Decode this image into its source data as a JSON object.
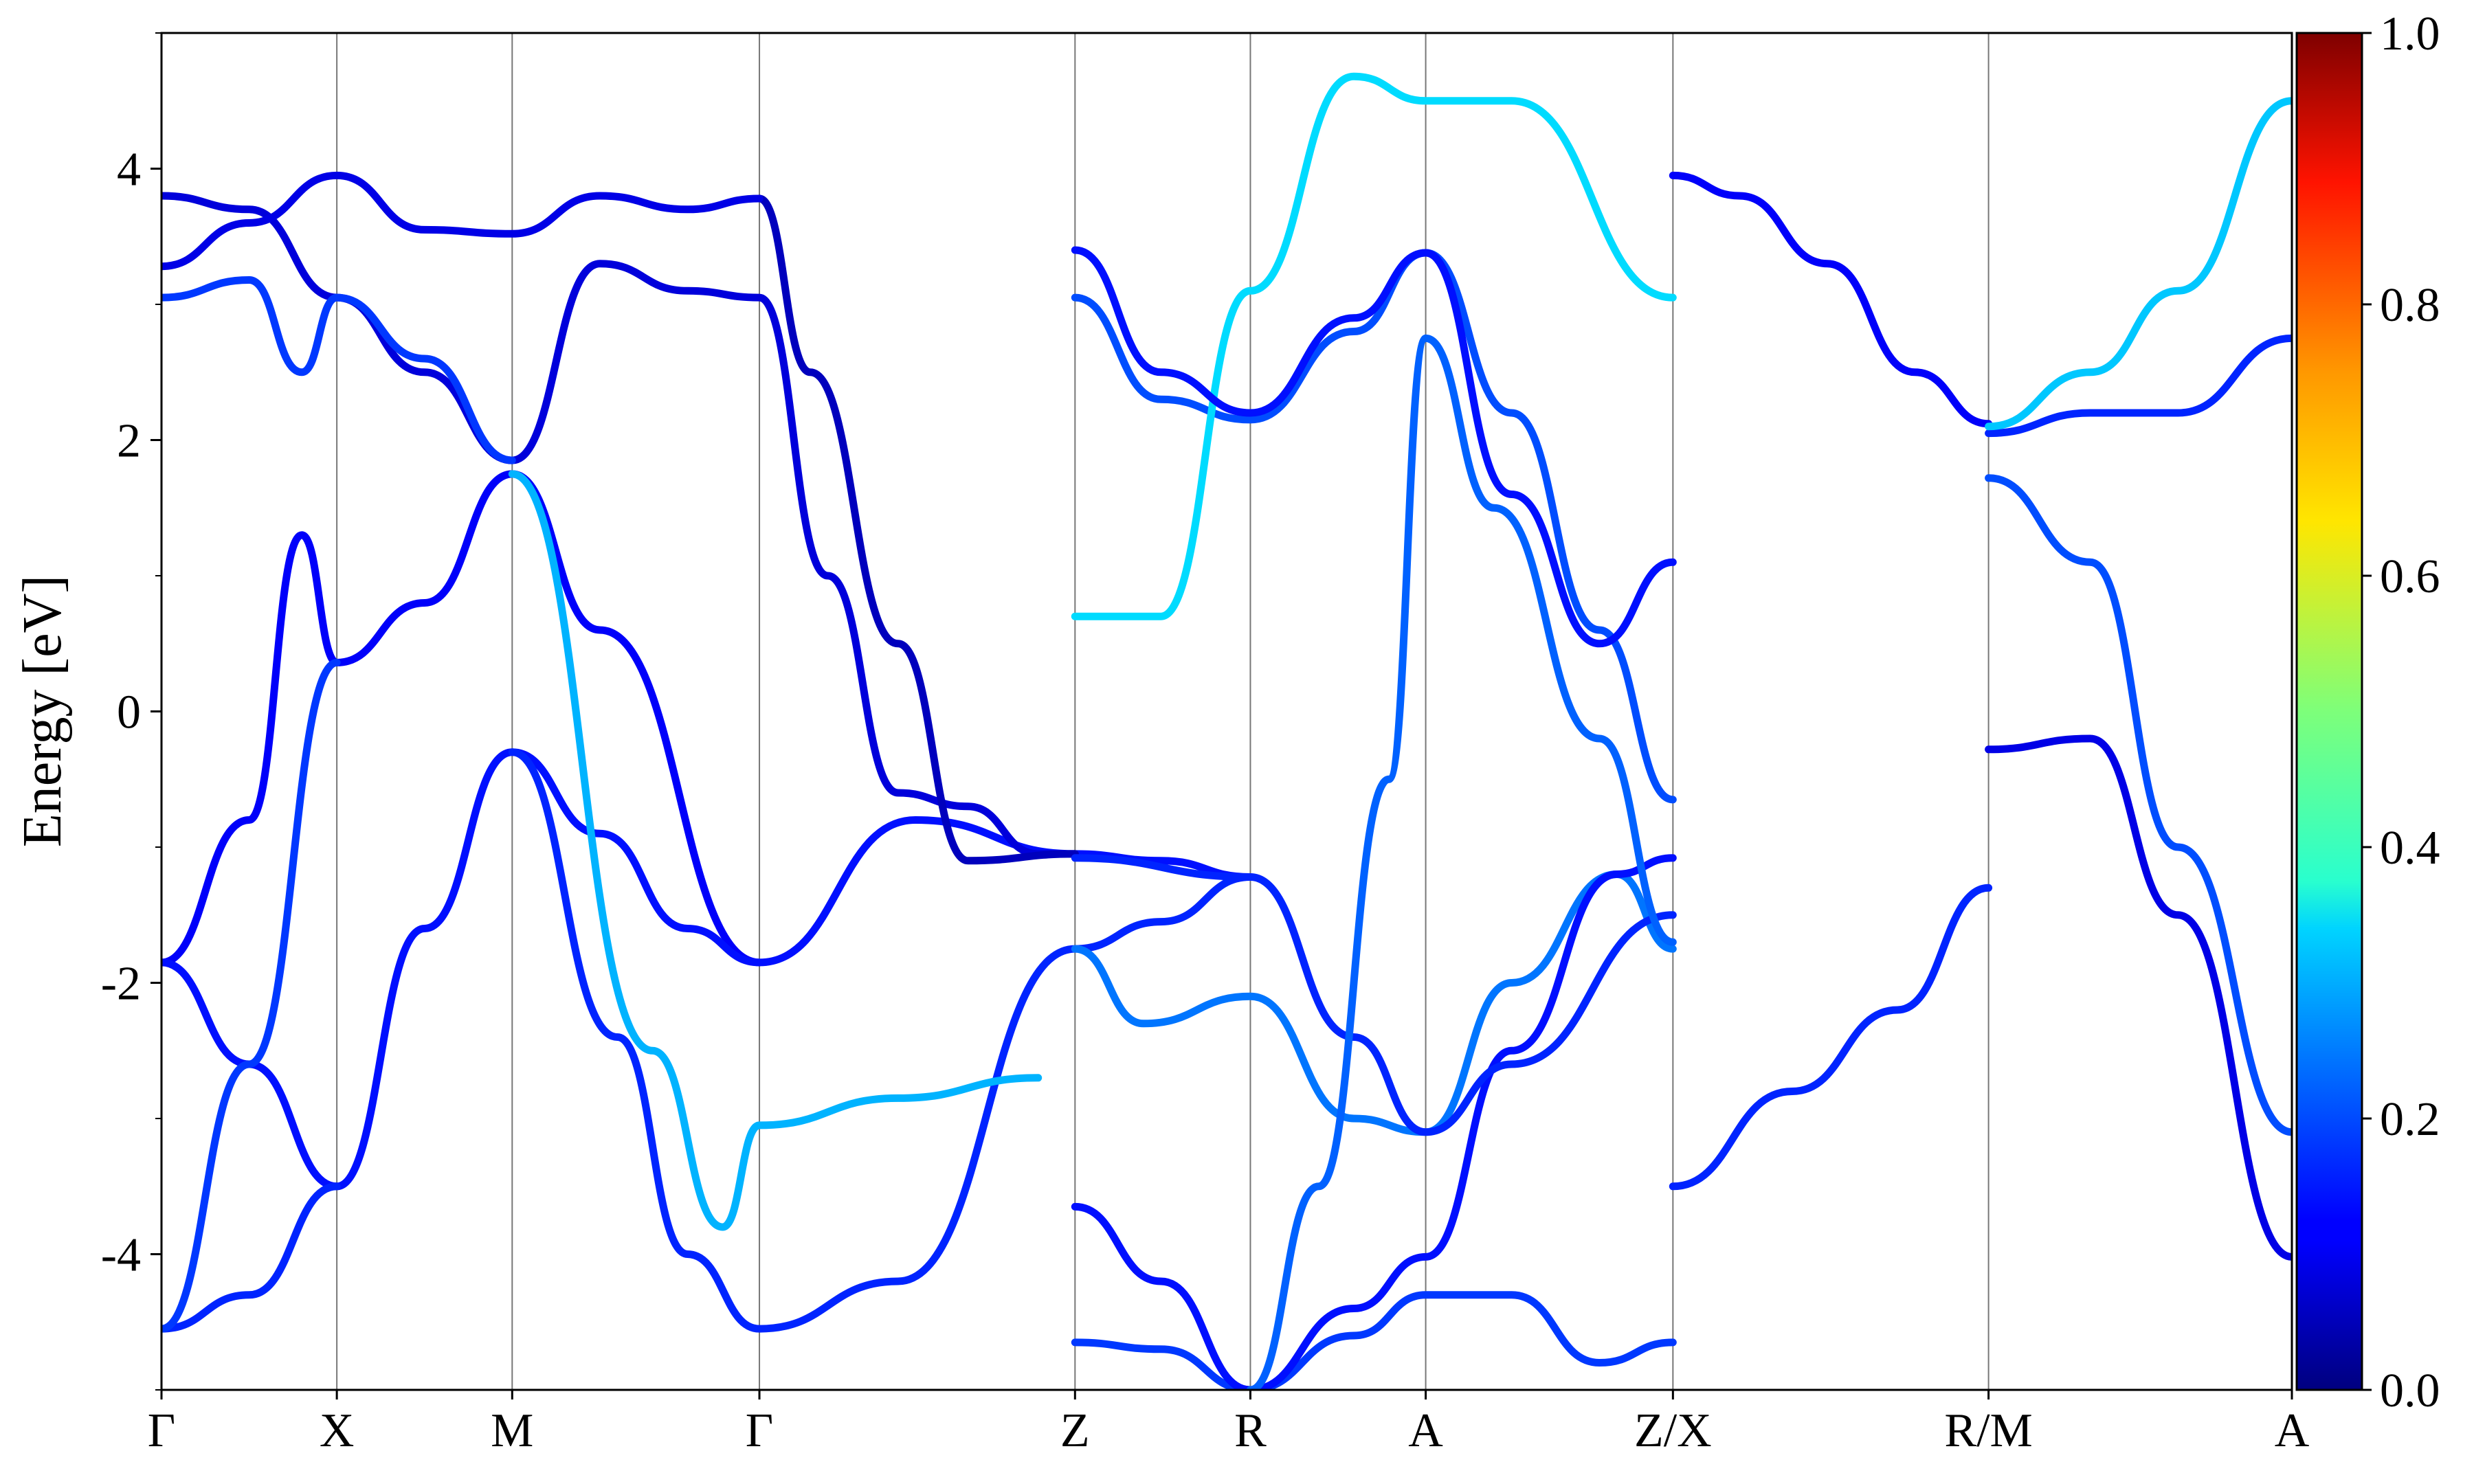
{
  "chart_data": {
    "type": "line",
    "title": "",
    "xlabel": "",
    "ylabel": "Energy [eV]",
    "ylim": [
      -5,
      5
    ],
    "y_ticks": [
      -4,
      -2,
      0,
      2,
      4
    ],
    "y_tick_labels": [
      "-4",
      "-2",
      "0",
      "2",
      "4"
    ],
    "k_path": [
      {
        "label": "Γ",
        "x": 0
      },
      {
        "label": "X",
        "x": 1.0
      },
      {
        "label": "M",
        "x": 2.0
      },
      {
        "label": "Γ",
        "x": 3.41
      },
      {
        "label": "Z",
        "x": 5.21
      },
      {
        "label": "R",
        "x": 6.21
      },
      {
        "label": "A",
        "x": 7.21
      },
      {
        "label": "Z/X",
        "x": 8.62
      },
      {
        "label": "R/M",
        "x": 10.42
      },
      {
        "label": "A",
        "x": 12.15
      }
    ],
    "xlim": [
      0,
      12.15
    ],
    "colorbar": {
      "colormap": "jet",
      "range": [
        0,
        1
      ],
      "ticks": [
        0.0,
        0.2,
        0.4,
        0.6,
        0.8,
        1.0
      ],
      "tick_labels": [
        "0.0",
        "0.2",
        "0.4",
        "0.6",
        "0.8",
        "1.0"
      ]
    },
    "series": [
      {
        "c": 0.12,
        "points": [
          [
            0,
            -1.85
          ],
          [
            0.5,
            -0.8
          ],
          [
            0.8,
            1.3
          ],
          [
            1.0,
            0.36
          ],
          [
            1.5,
            0.8
          ],
          [
            2.0,
            1.75
          ],
          [
            2.5,
            0.6
          ],
          [
            3.41,
            -1.85
          ]
        ]
      },
      {
        "c": 0.14,
        "points": [
          [
            0,
            -1.85
          ],
          [
            0.5,
            -2.6
          ],
          [
            1.0,
            -3.5
          ],
          [
            1.5,
            -1.6
          ],
          [
            2.0,
            -0.3
          ],
          [
            2.5,
            -0.9
          ],
          [
            3.0,
            -1.6
          ],
          [
            3.41,
            -1.85
          ],
          [
            4.3,
            -0.8
          ],
          [
            5.21,
            -1.05
          ],
          [
            5.7,
            -1.1
          ],
          [
            6.21,
            -1.22
          ]
        ]
      },
      {
        "c": 0.16,
        "points": [
          [
            0,
            -4.55
          ],
          [
            0.5,
            -4.3
          ],
          [
            1.0,
            -3.5
          ]
        ]
      },
      {
        "c": 0.18,
        "points": [
          [
            0,
            -4.55
          ],
          [
            0.5,
            -2.6
          ],
          [
            1.0,
            0.36
          ]
        ]
      },
      {
        "c": 0.16,
        "points": [
          [
            2.0,
            -0.3
          ],
          [
            2.6,
            -2.4
          ],
          [
            3.0,
            -4.0
          ],
          [
            3.41,
            -4.55
          ],
          [
            4.2,
            -4.2
          ],
          [
            5.21,
            -1.75
          ],
          [
            5.7,
            -1.55
          ],
          [
            6.21,
            -1.22
          ]
        ]
      },
      {
        "c": 0.3,
        "points": [
          [
            2.0,
            1.75
          ],
          [
            2.8,
            -2.5
          ],
          [
            3.2,
            -3.8
          ],
          [
            3.41,
            -3.05
          ],
          [
            4.2,
            -2.85
          ],
          [
            5.0,
            -2.7
          ]
        ]
      },
      {
        "c": 0.09,
        "points": [
          [
            0,
            3.8
          ],
          [
            0.5,
            3.7
          ],
          [
            1.0,
            3.05
          ],
          [
            1.5,
            2.5
          ],
          [
            2.0,
            1.85
          ],
          [
            2.5,
            3.3
          ],
          [
            3.0,
            3.1
          ],
          [
            3.41,
            3.05
          ],
          [
            3.8,
            1.0
          ],
          [
            4.2,
            -0.6
          ],
          [
            4.6,
            -0.7
          ],
          [
            5.0,
            -1.05
          ],
          [
            5.21,
            -1.05
          ]
        ]
      },
      {
        "c": 0.06,
        "points": [
          [
            3.41,
            3.78
          ],
          [
            3.7,
            2.5
          ],
          [
            4.2,
            0.5
          ],
          [
            4.6,
            -1.1
          ],
          [
            5.21,
            -1.05
          ]
        ]
      },
      {
        "c": 0.1,
        "points": [
          [
            0,
            3.28
          ],
          [
            0.5,
            3.6
          ],
          [
            1.0,
            3.95
          ],
          [
            1.5,
            3.55
          ],
          [
            2.0,
            3.52
          ],
          [
            2.5,
            3.8
          ],
          [
            3.0,
            3.7
          ],
          [
            3.41,
            3.78
          ]
        ]
      },
      {
        "c": 0.18,
        "points": [
          [
            0,
            3.05
          ],
          [
            0.5,
            3.18
          ],
          [
            0.8,
            2.5
          ],
          [
            1.0,
            3.05
          ],
          [
            1.5,
            2.6
          ],
          [
            2.0,
            1.85
          ]
        ]
      },
      {
        "c": 0.24,
        "points": [
          [
            5.21,
            -1.75
          ],
          [
            5.6,
            -2.3
          ],
          [
            6.21,
            -2.1
          ],
          [
            6.8,
            -3.0
          ],
          [
            7.21,
            -3.1
          ],
          [
            7.7,
            -2.0
          ],
          [
            8.3,
            -1.2
          ],
          [
            8.62,
            -1.75
          ]
        ]
      },
      {
        "c": 0.18,
        "points": [
          [
            5.21,
            -4.65
          ],
          [
            5.7,
            -4.7
          ],
          [
            6.21,
            -5.0
          ],
          [
            6.8,
            -4.6
          ],
          [
            7.21,
            -4.3
          ],
          [
            7.7,
            -4.3
          ],
          [
            8.2,
            -4.8
          ],
          [
            8.62,
            -4.65
          ]
        ]
      },
      {
        "c": 0.14,
        "points": [
          [
            5.21,
            -3.65
          ],
          [
            5.7,
            -4.2
          ],
          [
            6.21,
            -5.0
          ]
        ]
      },
      {
        "c": 0.2,
        "points": [
          [
            5.21,
            3.05
          ],
          [
            5.7,
            2.3
          ],
          [
            6.21,
            2.15
          ],
          [
            6.8,
            2.8
          ],
          [
            7.21,
            3.38
          ],
          [
            7.7,
            2.2
          ],
          [
            8.2,
            0.6
          ],
          [
            8.62,
            -0.65
          ]
        ]
      },
      {
        "c": 0.14,
        "points": [
          [
            6.21,
            -5.0
          ],
          [
            6.8,
            -4.4
          ],
          [
            7.21,
            -4.02
          ],
          [
            7.7,
            -2.5
          ],
          [
            8.3,
            -1.2
          ],
          [
            8.62,
            -1.08
          ]
        ]
      },
      {
        "c": 0.16,
        "points": [
          [
            5.21,
            -1.08
          ],
          [
            6.21,
            -1.22
          ],
          [
            6.8,
            -2.4
          ],
          [
            7.21,
            -3.1
          ],
          [
            7.7,
            -2.6
          ],
          [
            8.62,
            -1.5
          ]
        ]
      },
      {
        "c": 0.22,
        "points": [
          [
            6.21,
            -5.0
          ],
          [
            6.6,
            -3.5
          ],
          [
            7.0,
            -0.5
          ],
          [
            7.21,
            2.75
          ],
          [
            7.6,
            1.5
          ],
          [
            8.2,
            -0.2
          ],
          [
            8.62,
            -1.7
          ]
        ]
      },
      {
        "c": 0.34,
        "points": [
          [
            5.21,
            0.7
          ],
          [
            5.7,
            0.7
          ],
          [
            6.21,
            3.1
          ],
          [
            6.8,
            4.68
          ],
          [
            7.21,
            4.5
          ],
          [
            7.7,
            4.5
          ],
          [
            8.62,
            3.05
          ]
        ]
      },
      {
        "c": 0.14,
        "points": [
          [
            5.21,
            3.4
          ],
          [
            5.7,
            2.5
          ],
          [
            6.21,
            2.2
          ],
          [
            6.8,
            2.9
          ],
          [
            7.21,
            3.38
          ],
          [
            7.7,
            1.6
          ],
          [
            8.2,
            0.5
          ],
          [
            8.62,
            1.1
          ]
        ]
      },
      {
        "c": 0.12,
        "points": [
          [
            8.62,
            3.95
          ],
          [
            9.0,
            3.8
          ],
          [
            9.5,
            3.3
          ],
          [
            10.0,
            2.5
          ],
          [
            10.42,
            2.12
          ]
        ]
      },
      {
        "c": 0.16,
        "points": [
          [
            8.62,
            -3.5
          ],
          [
            9.3,
            -2.8
          ],
          [
            9.9,
            -2.2
          ],
          [
            10.42,
            -1.3
          ]
        ]
      },
      {
        "c": 0.1,
        "points": [
          [
            10.42,
            -0.28
          ],
          [
            11.0,
            -0.2
          ],
          [
            11.5,
            -1.5
          ],
          [
            12.15,
            -4.02
          ]
        ]
      },
      {
        "c": 0.16,
        "points": [
          [
            10.42,
            2.05
          ],
          [
            11.0,
            2.2
          ],
          [
            11.5,
            2.2
          ],
          [
            12.15,
            2.75
          ]
        ]
      },
      {
        "c": 0.2,
        "points": [
          [
            10.42,
            1.72
          ],
          [
            11.0,
            1.1
          ],
          [
            11.5,
            -1.0
          ],
          [
            12.15,
            -3.1
          ]
        ]
      },
      {
        "c": 0.32,
        "points": [
          [
            10.42,
            2.1
          ],
          [
            11.0,
            2.5
          ],
          [
            11.5,
            3.1
          ],
          [
            12.15,
            4.5
          ]
        ]
      }
    ]
  }
}
